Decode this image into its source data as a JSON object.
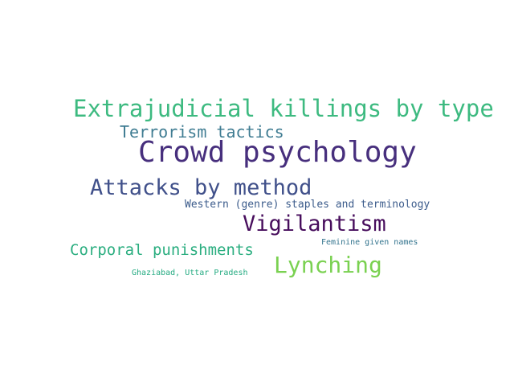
{
  "word_cloud": {
    "words": [
      {
        "text": "Extrajudicial killings by type",
        "color": "#3dba80"
      },
      {
        "text": "Terrorism tactics",
        "color": "#3f7c92"
      },
      {
        "text": "Crowd psychology",
        "color": "#472f7d"
      },
      {
        "text": "Attacks by method",
        "color": "#40508a"
      },
      {
        "text": "Western (genre) staples and terminology",
        "color": "#3b5b8b"
      },
      {
        "text": "Vigilantism",
        "color": "#470d5c"
      },
      {
        "text": "Feminine given names",
        "color": "#33748e"
      },
      {
        "text": "Corporal punishments",
        "color": "#2bae80"
      },
      {
        "text": "Lynching",
        "color": "#7ad151"
      },
      {
        "text": "Ghaziabad, Uttar Pradesh",
        "color": "#25ab82"
      }
    ]
  }
}
